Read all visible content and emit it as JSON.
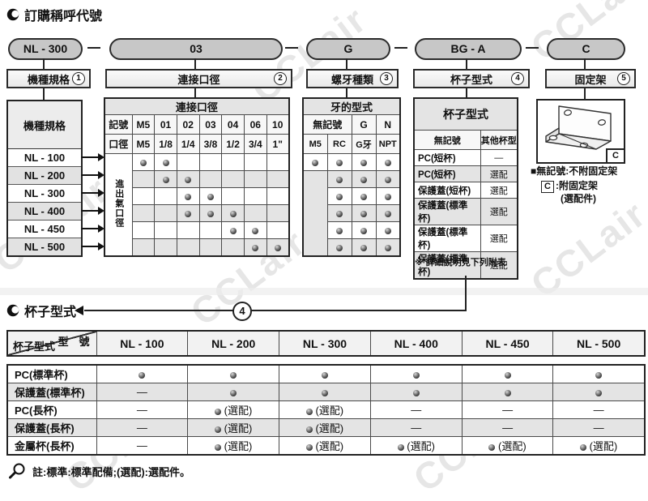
{
  "watermark": "CCLair",
  "section1": {
    "title": "訂購稱呼代號",
    "codes": [
      "NL - 300",
      "03",
      "G",
      "BG - A",
      "C"
    ],
    "labels": [
      {
        "text": "機種規格",
        "num": "1"
      },
      {
        "text": "連接口徑",
        "num": "2"
      },
      {
        "text": "螺牙種類",
        "num": "3"
      },
      {
        "text": "杯子型式",
        "num": "4"
      },
      {
        "text": "固定架",
        "num": "5"
      }
    ]
  },
  "model_table": {
    "header": "機種規格",
    "rows": [
      "NL - 100",
      "NL - 200",
      "NL - 300",
      "NL - 400",
      "NL - 450",
      "NL - 500"
    ]
  },
  "port_table": {
    "header": "連接口徑",
    "row_code_label": "記號",
    "row_size_label": "口徑",
    "codes": [
      "M5",
      "01",
      "02",
      "03",
      "04",
      "06",
      "10"
    ],
    "sizes": [
      "M5",
      "1/8",
      "1/4",
      "3/8",
      "1/2",
      "3/4",
      "1\""
    ],
    "side_label": "進出氣口徑",
    "matrix": [
      [
        1,
        1,
        0,
        0,
        0,
        0,
        0
      ],
      [
        0,
        1,
        1,
        0,
        0,
        0,
        0
      ],
      [
        0,
        0,
        1,
        1,
        0,
        0,
        0
      ],
      [
        0,
        0,
        1,
        1,
        1,
        0,
        0
      ],
      [
        0,
        0,
        0,
        0,
        1,
        1,
        0
      ],
      [
        0,
        0,
        0,
        0,
        0,
        1,
        1
      ]
    ]
  },
  "thread_table": {
    "header": "牙的型式",
    "group_no_mark": "無記號",
    "group_g": "G",
    "group_n": "N",
    "codes": [
      "M5",
      "RC",
      "G牙",
      "NPT"
    ],
    "matrix": [
      [
        1,
        1,
        1,
        1
      ],
      [
        0,
        1,
        1,
        1
      ],
      [
        0,
        1,
        1,
        1
      ],
      [
        0,
        1,
        1,
        1
      ],
      [
        0,
        1,
        1,
        1
      ],
      [
        0,
        1,
        1,
        1
      ]
    ]
  },
  "cup_table": {
    "header": "杯子型式",
    "col1": "無記號",
    "col2": "其他杯型",
    "rows": [
      [
        "PC(短杯)",
        "—"
      ],
      [
        "PC(短杯)",
        "選配"
      ],
      [
        "保護蓋(短杯)",
        "選配"
      ],
      [
        "保護蓋(標準杯)",
        "選配"
      ],
      [
        "保護蓋(標準杯)",
        "選配"
      ],
      [
        "保護蓋(標準杯)",
        "選配"
      ]
    ],
    "note": "※ 詳細說明見下列附表"
  },
  "bracket": {
    "corner_label": "C",
    "line1": "■無記號:不附固定架",
    "line2_code": "C",
    "line2_text": ":附固定架",
    "line3": "(選配件)"
  },
  "section2": {
    "title": "杯子型式",
    "num": "4",
    "corner_top": "型　號",
    "corner_bottom": "杯子型式",
    "columns": [
      "NL - 100",
      "NL - 200",
      "NL - 300",
      "NL - 400",
      "NL - 450",
      "NL - 500"
    ],
    "rows": [
      {
        "label": "PC(標準杯)",
        "cells": [
          "dot",
          "dot",
          "dot",
          "dot",
          "dot",
          "dot"
        ]
      },
      {
        "label": "保護蓋(標準杯)",
        "cells": [
          "dash",
          "dot",
          "dot",
          "dot",
          "dot",
          "dot"
        ]
      },
      {
        "label": "PC(長杯)",
        "cells": [
          "dash",
          "dotopt",
          "dotopt",
          "dash",
          "dash",
          "dash"
        ]
      },
      {
        "label": "保護蓋(長杯)",
        "cells": [
          "dash",
          "dotopt",
          "dotopt",
          "dash",
          "dash",
          "dash"
        ]
      },
      {
        "label": "金屬杯(長杯)",
        "cells": [
          "dash",
          "dotopt",
          "dotopt",
          "dotopt",
          "dotopt",
          "dotopt"
        ]
      }
    ],
    "dash_char": "—",
    "opt_label": "(選配)"
  },
  "footer_note": "註:標準:標準配備;(選配):選配件。"
}
